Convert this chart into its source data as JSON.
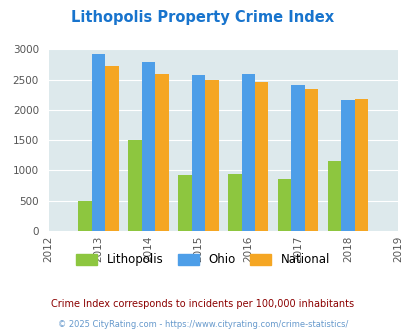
{
  "title": "Lithopolis Property Crime Index",
  "title_color": "#1874CD",
  "years": [
    2012,
    2013,
    2014,
    2015,
    2016,
    2017,
    2018,
    2019
  ],
  "bar_years": [
    2013,
    2014,
    2015,
    2016,
    2017,
    2018
  ],
  "lithopolis": [
    500,
    1500,
    920,
    940,
    860,
    1150
  ],
  "ohio": [
    2920,
    2790,
    2580,
    2590,
    2410,
    2160
  ],
  "national": [
    2730,
    2600,
    2490,
    2460,
    2350,
    2180
  ],
  "color_lithopolis": "#8DC63F",
  "color_ohio": "#4D9EE8",
  "color_national": "#F5A623",
  "bg_color": "#DDE9EC",
  "ylim": [
    0,
    3000
  ],
  "yticks": [
    0,
    500,
    1000,
    1500,
    2000,
    2500,
    3000
  ],
  "legend_labels": [
    "Lithopolis",
    "Ohio",
    "National"
  ],
  "footnote1": "Crime Index corresponds to incidents per 100,000 inhabitants",
  "footnote2": "© 2025 CityRating.com - https://www.cityrating.com/crime-statistics/",
  "footnote1_color": "#8B0000",
  "footnote2_color": "#6699CC"
}
